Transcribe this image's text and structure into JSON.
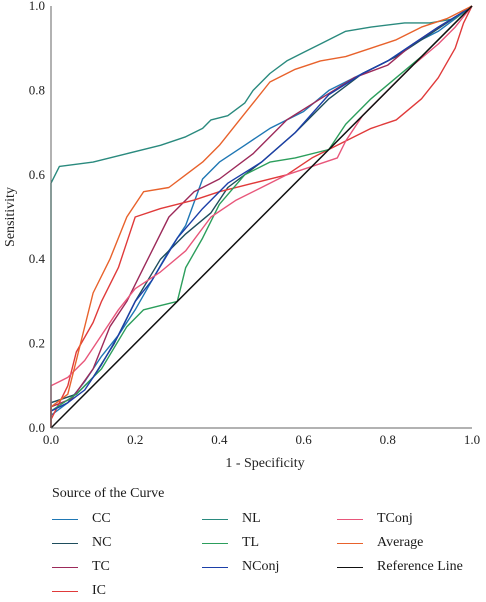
{
  "chart_data": {
    "type": "line",
    "title": "",
    "xlabel": "1 - Specificity",
    "ylabel": "Sensitivity",
    "xlim": [
      0,
      1
    ],
    "ylim": [
      0,
      1
    ],
    "xticks": [
      "0.0",
      "0.2",
      "0.4",
      "0.6",
      "0.8",
      "1.0"
    ],
    "yticks": [
      "0.0",
      "0.2",
      "0.4",
      "0.6",
      "0.8",
      "1.0"
    ],
    "grid": false,
    "legend_title": "Source of the Curve",
    "legend_position": "bottom",
    "series": [
      {
        "name": "CC",
        "color": "#1f77b4",
        "points": [
          [
            0,
            0
          ],
          [
            0,
            0.03
          ],
          [
            0.04,
            0.06
          ],
          [
            0.08,
            0.11
          ],
          [
            0.12,
            0.17
          ],
          [
            0.16,
            0.22
          ],
          [
            0.2,
            0.28
          ],
          [
            0.24,
            0.35
          ],
          [
            0.28,
            0.42
          ],
          [
            0.32,
            0.48
          ],
          [
            0.36,
            0.59
          ],
          [
            0.4,
            0.63
          ],
          [
            0.46,
            0.67
          ],
          [
            0.52,
            0.71
          ],
          [
            0.6,
            0.75
          ],
          [
            0.66,
            0.8
          ],
          [
            0.72,
            0.83
          ],
          [
            0.8,
            0.87
          ],
          [
            0.86,
            0.91
          ],
          [
            0.92,
            0.94
          ],
          [
            0.96,
            0.97
          ],
          [
            1,
            1
          ]
        ]
      },
      {
        "name": "NC",
        "color": "#1e4d5c",
        "points": [
          [
            0,
            0
          ],
          [
            0,
            0.06
          ],
          [
            0.06,
            0.08
          ],
          [
            0.1,
            0.12
          ],
          [
            0.15,
            0.2
          ],
          [
            0.2,
            0.3
          ],
          [
            0.26,
            0.4
          ],
          [
            0.32,
            0.46
          ],
          [
            0.38,
            0.51
          ],
          [
            0.42,
            0.57
          ],
          [
            0.5,
            0.63
          ],
          [
            0.58,
            0.7
          ],
          [
            0.66,
            0.78
          ],
          [
            0.74,
            0.84
          ],
          [
            0.82,
            0.88
          ],
          [
            0.88,
            0.92
          ],
          [
            0.94,
            0.96
          ],
          [
            1,
            1
          ]
        ]
      },
      {
        "name": "TC",
        "color": "#9c2a5a",
        "points": [
          [
            0,
            0
          ],
          [
            0,
            0.05
          ],
          [
            0.05,
            0.07
          ],
          [
            0.1,
            0.14
          ],
          [
            0.14,
            0.24
          ],
          [
            0.18,
            0.3
          ],
          [
            0.22,
            0.38
          ],
          [
            0.28,
            0.5
          ],
          [
            0.34,
            0.56
          ],
          [
            0.4,
            0.59
          ],
          [
            0.48,
            0.65
          ],
          [
            0.56,
            0.73
          ],
          [
            0.64,
            0.78
          ],
          [
            0.72,
            0.83
          ],
          [
            0.8,
            0.86
          ],
          [
            0.86,
            0.91
          ],
          [
            0.92,
            0.95
          ],
          [
            0.97,
            0.98
          ],
          [
            1,
            1
          ]
        ]
      },
      {
        "name": "IC",
        "color": "#e03a3a",
        "points": [
          [
            0,
            0
          ],
          [
            0,
            0.02
          ],
          [
            0.04,
            0.1
          ],
          [
            0.06,
            0.18
          ],
          [
            0.1,
            0.25
          ],
          [
            0.12,
            0.3
          ],
          [
            0.16,
            0.38
          ],
          [
            0.2,
            0.5
          ],
          [
            0.26,
            0.52
          ],
          [
            0.34,
            0.54
          ],
          [
            0.4,
            0.56
          ],
          [
            0.48,
            0.58
          ],
          [
            0.56,
            0.6
          ],
          [
            0.62,
            0.64
          ],
          [
            0.7,
            0.68
          ],
          [
            0.76,
            0.71
          ],
          [
            0.82,
            0.73
          ],
          [
            0.88,
            0.78
          ],
          [
            0.92,
            0.83
          ],
          [
            0.96,
            0.9
          ],
          [
            0.98,
            0.96
          ],
          [
            1,
            1
          ]
        ]
      },
      {
        "name": "NL",
        "color": "#2a8a7e",
        "points": [
          [
            0,
            0
          ],
          [
            0,
            0.58
          ],
          [
            0.02,
            0.62
          ],
          [
            0.1,
            0.63
          ],
          [
            0.18,
            0.65
          ],
          [
            0.26,
            0.67
          ],
          [
            0.32,
            0.69
          ],
          [
            0.36,
            0.71
          ],
          [
            0.38,
            0.73
          ],
          [
            0.42,
            0.74
          ],
          [
            0.46,
            0.77
          ],
          [
            0.48,
            0.8
          ],
          [
            0.52,
            0.84
          ],
          [
            0.56,
            0.87
          ],
          [
            0.6,
            0.89
          ],
          [
            0.64,
            0.91
          ],
          [
            0.7,
            0.94
          ],
          [
            0.76,
            0.95
          ],
          [
            0.84,
            0.96
          ],
          [
            0.9,
            0.96
          ],
          [
            0.96,
            0.97
          ],
          [
            1,
            1
          ]
        ]
      },
      {
        "name": "TL",
        "color": "#2c9e5c",
        "points": [
          [
            0,
            0
          ],
          [
            0,
            0.04
          ],
          [
            0.06,
            0.08
          ],
          [
            0.12,
            0.14
          ],
          [
            0.18,
            0.24
          ],
          [
            0.22,
            0.28
          ],
          [
            0.26,
            0.29
          ],
          [
            0.3,
            0.3
          ],
          [
            0.32,
            0.38
          ],
          [
            0.36,
            0.45
          ],
          [
            0.4,
            0.53
          ],
          [
            0.46,
            0.6
          ],
          [
            0.52,
            0.63
          ],
          [
            0.58,
            0.64
          ],
          [
            0.66,
            0.66
          ],
          [
            0.7,
            0.72
          ],
          [
            0.76,
            0.78
          ],
          [
            0.82,
            0.83
          ],
          [
            0.88,
            0.88
          ],
          [
            0.92,
            0.92
          ],
          [
            0.96,
            0.96
          ],
          [
            1,
            1
          ]
        ]
      },
      {
        "name": "NConj",
        "color": "#1c3fa8",
        "points": [
          [
            0,
            0
          ],
          [
            0,
            0.04
          ],
          [
            0.04,
            0.06
          ],
          [
            0.08,
            0.09
          ],
          [
            0.12,
            0.15
          ],
          [
            0.16,
            0.22
          ],
          [
            0.2,
            0.3
          ],
          [
            0.24,
            0.35
          ],
          [
            0.3,
            0.45
          ],
          [
            0.36,
            0.52
          ],
          [
            0.42,
            0.58
          ],
          [
            0.5,
            0.63
          ],
          [
            0.58,
            0.7
          ],
          [
            0.66,
            0.79
          ],
          [
            0.74,
            0.84
          ],
          [
            0.8,
            0.87
          ],
          [
            0.86,
            0.91
          ],
          [
            0.92,
            0.95
          ],
          [
            0.97,
            0.98
          ],
          [
            1,
            1
          ]
        ]
      },
      {
        "name": "TConj",
        "color": "#e8567a",
        "points": [
          [
            0,
            0
          ],
          [
            0,
            0.1
          ],
          [
            0.04,
            0.12
          ],
          [
            0.08,
            0.16
          ],
          [
            0.12,
            0.22
          ],
          [
            0.16,
            0.28
          ],
          [
            0.2,
            0.33
          ],
          [
            0.26,
            0.37
          ],
          [
            0.32,
            0.42
          ],
          [
            0.38,
            0.5
          ],
          [
            0.44,
            0.54
          ],
          [
            0.5,
            0.57
          ],
          [
            0.56,
            0.6
          ],
          [
            0.62,
            0.62
          ],
          [
            0.68,
            0.64
          ],
          [
            0.7,
            0.68
          ],
          [
            0.74,
            0.74
          ],
          [
            0.8,
            0.8
          ],
          [
            0.86,
            0.86
          ],
          [
            0.92,
            0.91
          ],
          [
            0.96,
            0.95
          ],
          [
            1,
            1
          ]
        ]
      },
      {
        "name": "Average",
        "color": "#e8622c",
        "points": [
          [
            0,
            0
          ],
          [
            0,
            0.05
          ],
          [
            0.04,
            0.08
          ],
          [
            0.06,
            0.16
          ],
          [
            0.1,
            0.32
          ],
          [
            0.14,
            0.4
          ],
          [
            0.18,
            0.5
          ],
          [
            0.22,
            0.56
          ],
          [
            0.28,
            0.57
          ],
          [
            0.32,
            0.6
          ],
          [
            0.36,
            0.63
          ],
          [
            0.4,
            0.67
          ],
          [
            0.44,
            0.72
          ],
          [
            0.48,
            0.77
          ],
          [
            0.52,
            0.82
          ],
          [
            0.58,
            0.85
          ],
          [
            0.64,
            0.87
          ],
          [
            0.7,
            0.88
          ],
          [
            0.76,
            0.9
          ],
          [
            0.82,
            0.92
          ],
          [
            0.88,
            0.95
          ],
          [
            0.94,
            0.97
          ],
          [
            1,
            1
          ]
        ]
      },
      {
        "name": "Reference Line",
        "color": "#111111",
        "points": [
          [
            0,
            0
          ],
          [
            1,
            1
          ]
        ]
      }
    ]
  }
}
